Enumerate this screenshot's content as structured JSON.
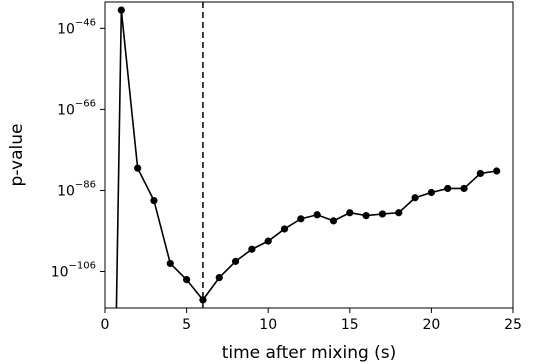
{
  "chart_data": {
    "type": "line",
    "title": "",
    "xlabel": "time after mixing (s)",
    "ylabel": "p-value",
    "xlim": [
      0,
      25
    ],
    "ylim_log10": [
      -115,
      -39.5
    ],
    "yscale": "log",
    "grid": false,
    "x_ticks": [
      {
        "value": 0,
        "label": "0"
      },
      {
        "value": 5,
        "label": "5"
      },
      {
        "value": 10,
        "label": "10"
      },
      {
        "value": 15,
        "label": "15"
      },
      {
        "value": 20,
        "label": "20"
      },
      {
        "value": 25,
        "label": "25"
      }
    ],
    "y_ticks": [
      {
        "log10": -46,
        "base": "10",
        "exponent": "−46"
      },
      {
        "log10": -66,
        "base": "10",
        "exponent": "−66"
      },
      {
        "log10": -86,
        "base": "10",
        "exponent": "−86"
      },
      {
        "log10": -106,
        "base": "10",
        "exponent": "−106"
      }
    ],
    "vline": {
      "x": 6,
      "style": "dashed"
    },
    "line_color": "#000000",
    "series": [
      {
        "x": [
          0.7,
          1,
          2,
          3,
          4,
          5,
          6,
          7,
          8,
          9,
          10,
          11,
          12,
          13,
          14,
          15,
          16,
          17,
          18,
          19,
          20,
          21,
          22,
          23,
          24
        ],
        "log10_p": [
          -115,
          -41.5,
          -80.5,
          -88.5,
          -104,
          -108,
          -113,
          -107.5,
          -103.5,
          -100.5,
          -98.5,
          -95.5,
          -93,
          -92,
          -93.5,
          -91.5,
          -92.2,
          -91.8,
          -91.5,
          -87.8,
          -86.5,
          -85.5,
          -85.5,
          -81.8,
          -81.2
        ]
      }
    ]
  }
}
